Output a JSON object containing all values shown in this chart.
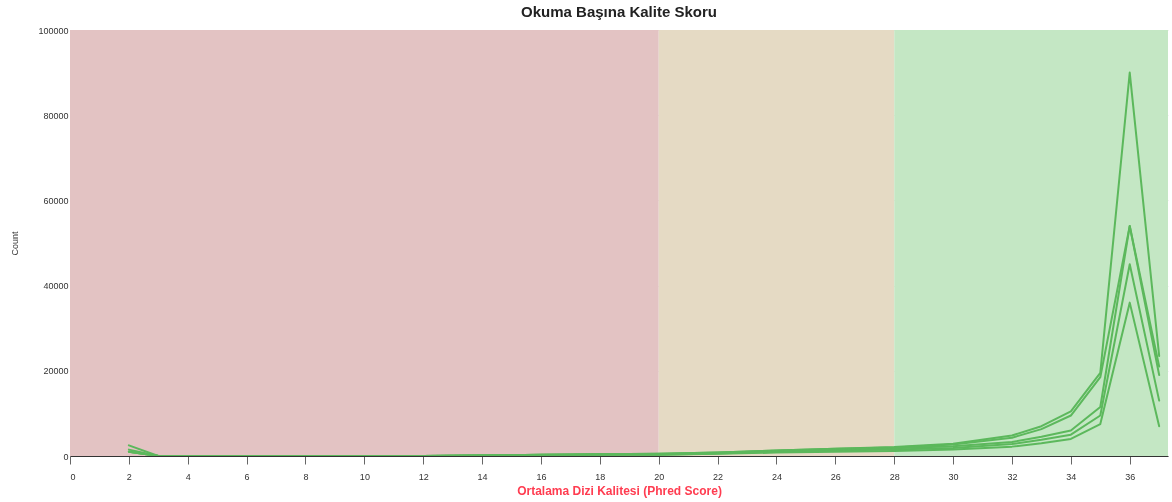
{
  "chart_data": {
    "type": "line",
    "title": "Okuma Başına Kalite Skoru",
    "xlabel": "Ortalama Dizi Kalitesi (Phred Score)",
    "ylabel": "Count",
    "x": [
      2,
      3,
      4,
      6,
      8,
      10,
      12,
      14,
      16,
      18,
      20,
      22,
      24,
      26,
      28,
      30,
      32,
      33,
      34,
      35,
      36,
      37
    ],
    "series": [
      {
        "color": "#5cb85c",
        "values": [
          1000,
          0,
          0,
          0,
          0,
          0,
          0,
          100,
          300,
          400,
          500,
          800,
          1300,
          1700,
          2100,
          2900,
          4800,
          7000,
          10500,
          19500,
          90000,
          23500
        ]
      },
      {
        "color": "#5cb85c",
        "values": [
          1000,
          0,
          0,
          0,
          0,
          0,
          0,
          100,
          300,
          400,
          500,
          800,
          1300,
          1700,
          2000,
          2700,
          4300,
          6300,
          9500,
          18500,
          54000,
          21000
        ]
      },
      {
        "color": "#5cb85c",
        "values": [
          2500,
          0,
          0,
          0,
          0,
          0,
          0,
          100,
          300,
          400,
          400,
          700,
          1200,
          1500,
          1800,
          2300,
          3300,
          4500,
          6000,
          11500,
          54000,
          19000
        ]
      },
      {
        "color": "#5cb85c",
        "values": [
          1500,
          0,
          0,
          0,
          0,
          0,
          0,
          100,
          200,
          300,
          300,
          600,
          1000,
          1300,
          1500,
          1900,
          2800,
          3800,
          5000,
          9500,
          45000,
          13000
        ]
      },
      {
        "color": "#5cb85c",
        "values": [
          1000,
          0,
          0,
          0,
          0,
          0,
          0,
          100,
          200,
          300,
          300,
          500,
          800,
          1000,
          1200,
          1500,
          2200,
          3000,
          4000,
          7500,
          36000,
          7000
        ]
      }
    ],
    "xlim": [
      0,
      37.3
    ],
    "xticks": [
      0,
      2,
      4,
      6,
      8,
      10,
      12,
      14,
      16,
      18,
      20,
      22,
      24,
      26,
      28,
      30,
      32,
      34,
      36
    ],
    "ylim": [
      0,
      100000
    ],
    "yticks": [
      0,
      20000,
      40000,
      60000,
      80000,
      100000
    ],
    "grid": "y",
    "marker": "none",
    "line_style": "solid",
    "bands": [
      {
        "axis": "x",
        "from": 0,
        "to": 20,
        "color": "#e3c3c3"
      },
      {
        "axis": "x",
        "from": 20,
        "to": 28,
        "color": "#e5dac4"
      },
      {
        "axis": "x",
        "from": 28,
        "to": 37.3,
        "color": "#c4e7c4"
      }
    ]
  }
}
